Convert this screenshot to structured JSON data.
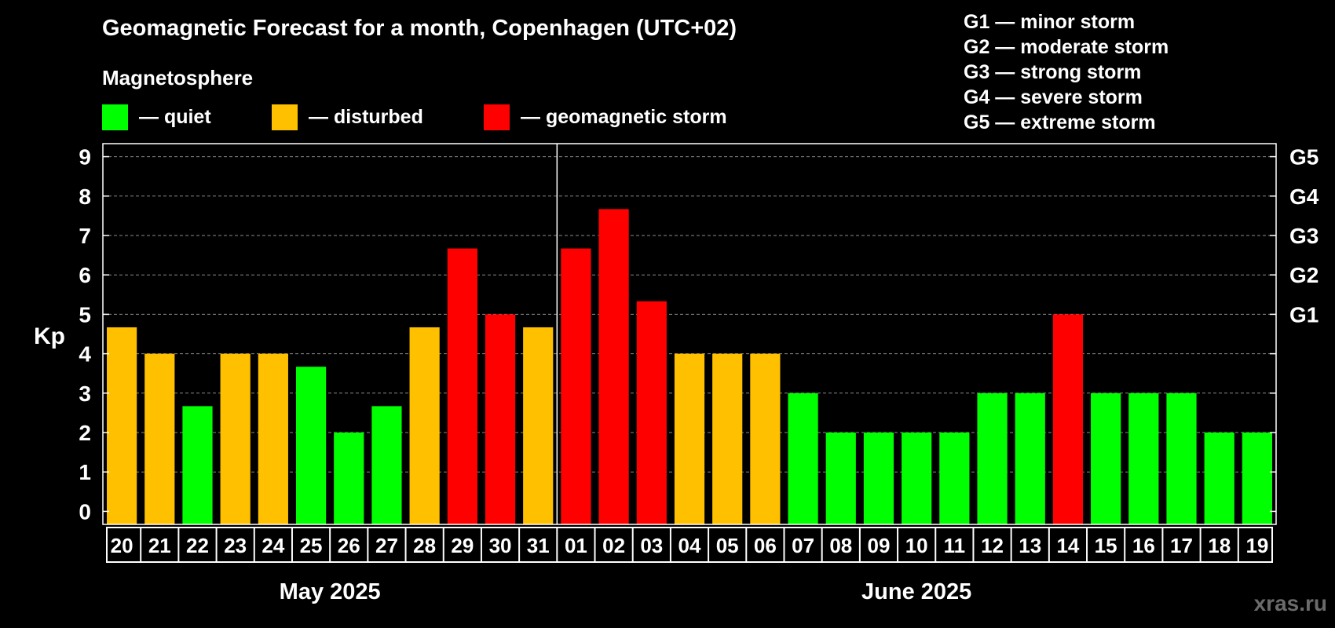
{
  "title": "Geomagnetic Forecast for a month, Copenhagen (UTC+02)",
  "legend": {
    "title": "Magnetosphere",
    "items": [
      {
        "label": "— quiet",
        "color": "#00ff00"
      },
      {
        "label": "— disturbed",
        "color": "#ffc000"
      },
      {
        "label": "— geomagnetic storm",
        "color": "#ff0000"
      }
    ]
  },
  "g_legend": [
    "G1 — minor storm",
    "G2 — moderate storm",
    "G3 — strong storm",
    "G4 — severe storm",
    "G5 — extreme storm"
  ],
  "watermark": "xras.ru",
  "chart_data": {
    "type": "bar",
    "title": "Geomagnetic Forecast for a month, Copenhagen (UTC+02)",
    "ylabel": "Kp",
    "ylim": [
      -0.33,
      9.33
    ],
    "yticks": [
      0,
      1,
      2,
      3,
      4,
      5,
      6,
      7,
      8,
      9
    ],
    "right_ticks": [
      {
        "value": 5,
        "label": "G1"
      },
      {
        "value": 6,
        "label": "G2"
      },
      {
        "value": 7,
        "label": "G3"
      },
      {
        "value": 8,
        "label": "G4"
      },
      {
        "value": 9,
        "label": "G5"
      }
    ],
    "grid": "horizontal dashed",
    "categories": [
      "20",
      "21",
      "22",
      "23",
      "24",
      "25",
      "26",
      "27",
      "28",
      "29",
      "30",
      "31",
      "01",
      "02",
      "03",
      "04",
      "05",
      "06",
      "07",
      "08",
      "09",
      "10",
      "11",
      "12",
      "13",
      "14",
      "15",
      "16",
      "17",
      "18",
      "19"
    ],
    "values": [
      4.67,
      4.0,
      2.67,
      4.0,
      4.0,
      3.67,
      2.0,
      2.67,
      4.67,
      6.67,
      5.0,
      4.67,
      6.67,
      7.67,
      5.33,
      4.0,
      4.0,
      4.0,
      3.0,
      2.0,
      2.0,
      2.0,
      2.0,
      3.0,
      3.0,
      5.0,
      3.0,
      3.0,
      3.0,
      2.0,
      2.0
    ],
    "status": [
      "disturbed",
      "disturbed",
      "quiet",
      "disturbed",
      "disturbed",
      "quiet",
      "quiet",
      "quiet",
      "disturbed",
      "storm",
      "storm",
      "disturbed",
      "storm",
      "storm",
      "storm",
      "disturbed",
      "disturbed",
      "disturbed",
      "quiet",
      "quiet",
      "quiet",
      "quiet",
      "quiet",
      "quiet",
      "quiet",
      "storm",
      "quiet",
      "quiet",
      "quiet",
      "quiet",
      "quiet"
    ],
    "status_colors": {
      "quiet": "#00ff00",
      "disturbed": "#ffc000",
      "storm": "#ff0000"
    },
    "months": [
      {
        "label": "May 2025",
        "days": 12
      },
      {
        "label": "June 2025",
        "days": 19
      }
    ]
  }
}
